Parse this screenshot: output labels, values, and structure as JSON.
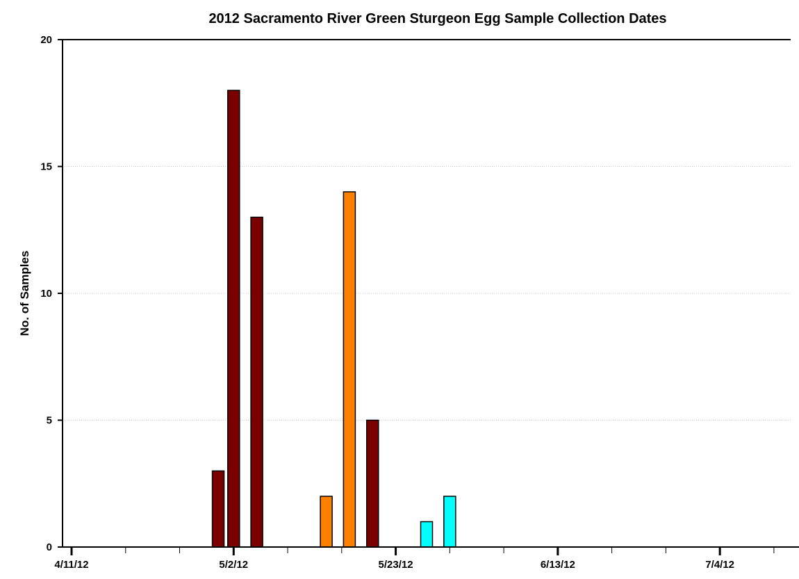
{
  "chart_data": {
    "type": "bar",
    "title": "2012 Sacramento River Green Sturgeon Egg Sample Collection Dates",
    "xlabel": "",
    "ylabel": "No. of Samples",
    "x_axis_kind": "date",
    "xlim": [
      "2012-04-11",
      "2012-07-12"
    ],
    "ylim": [
      0,
      20
    ],
    "x_tick_labels": [
      {
        "date": "2012-04-11",
        "label": "4/11/12"
      },
      {
        "date": "2012-05-02",
        "label": "5/2/12"
      },
      {
        "date": "2012-05-23",
        "label": "5/23/12"
      },
      {
        "date": "2012-06-13",
        "label": "6/13/12"
      },
      {
        "date": "2012-07-04",
        "label": "7/4/12"
      }
    ],
    "x_minor_tick_dates": [
      "2012-04-18",
      "2012-04-25",
      "2012-05-09",
      "2012-05-16",
      "2012-05-30",
      "2012-06-06",
      "2012-06-20",
      "2012-06-27",
      "2012-07-11"
    ],
    "y_ticks": [
      0,
      5,
      10,
      15,
      20
    ],
    "grid": "horizontal dotted",
    "series_colors": {
      "dark_red": "#7a0000",
      "orange": "#ff8000",
      "cyan": "#00ffff"
    },
    "bars": [
      {
        "date": "2012-04-30",
        "value": 3,
        "color": "#7a0000"
      },
      {
        "date": "2012-05-02",
        "value": 18,
        "color": "#7a0000"
      },
      {
        "date": "2012-05-05",
        "value": 13,
        "color": "#7a0000"
      },
      {
        "date": "2012-05-14",
        "value": 2,
        "color": "#ff8000"
      },
      {
        "date": "2012-05-17",
        "value": 14,
        "color": "#ff8000"
      },
      {
        "date": "2012-05-20",
        "value": 5,
        "color": "#7a0000"
      },
      {
        "date": "2012-05-27",
        "value": 1,
        "color": "#00ffff"
      },
      {
        "date": "2012-05-30",
        "value": 2,
        "color": "#00ffff"
      }
    ]
  }
}
